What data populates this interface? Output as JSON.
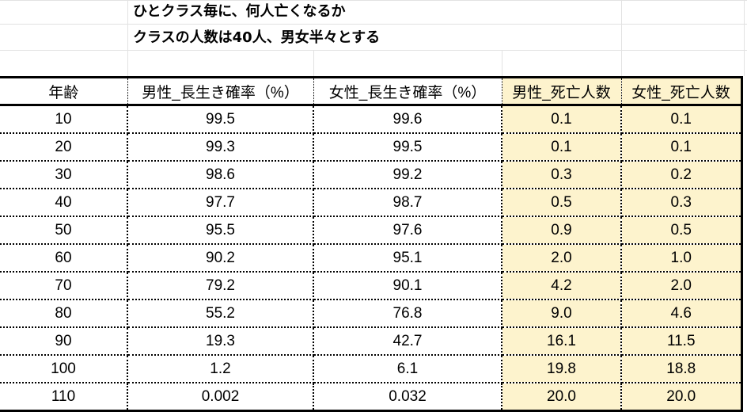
{
  "sheet": {
    "title_line1": "ひとクラス毎に、何人亡くなるか",
    "title_line2": "クラスの人数は40人、男女半々とする"
  },
  "table": {
    "headers": [
      "年齢",
      "男性_長生き確率（%）",
      "女性_長生き確率（%）",
      "男性_死亡人数",
      "女性_死亡人数"
    ],
    "highlight_color": "#fdf3cd",
    "rows": [
      [
        "10",
        "99.5",
        "99.6",
        "0.1",
        "0.1"
      ],
      [
        "20",
        "99.3",
        "99.5",
        "0.1",
        "0.1"
      ],
      [
        "30",
        "98.6",
        "99.2",
        "0.3",
        "0.2"
      ],
      [
        "40",
        "97.7",
        "98.7",
        "0.5",
        "0.3"
      ],
      [
        "50",
        "95.5",
        "97.6",
        "0.9",
        "0.5"
      ],
      [
        "60",
        "90.2",
        "95.1",
        "2.0",
        "1.0"
      ],
      [
        "70",
        "79.2",
        "90.1",
        "4.2",
        "2.0"
      ],
      [
        "80",
        "55.2",
        "76.8",
        "9.0",
        "4.6"
      ],
      [
        "90",
        "19.3",
        "42.7",
        "16.1",
        "11.5"
      ],
      [
        "100",
        "1.2",
        "6.1",
        "19.8",
        "18.8"
      ],
      [
        "110",
        "0.002",
        "0.032",
        "20.0",
        "20.0"
      ]
    ]
  }
}
